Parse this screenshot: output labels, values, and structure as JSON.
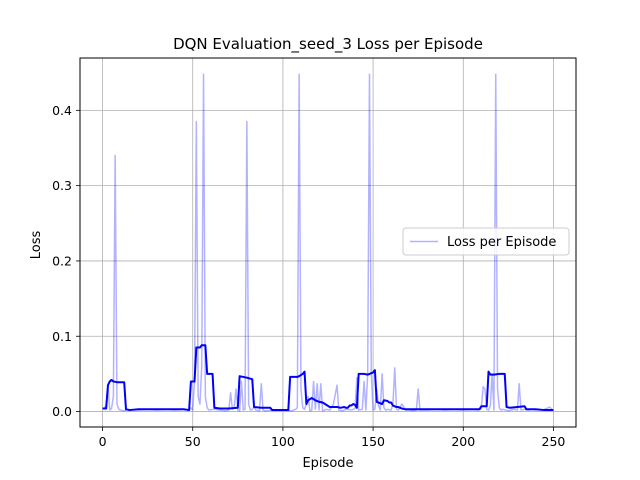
{
  "chart_data": {
    "type": "line",
    "title": "DQN Evaluation_seed_3 Loss per Episode",
    "xlabel": "Episode",
    "ylabel": "Loss",
    "xlim": [
      -12.5,
      262.5
    ],
    "ylim": [
      -0.0205,
      0.4695
    ],
    "xticks": [
      0,
      50,
      100,
      150,
      200,
      250
    ],
    "yticks": [
      0.0,
      0.1,
      0.2,
      0.3,
      0.4
    ],
    "ytick_labels": [
      "0.0",
      "0.1",
      "0.2",
      "0.3",
      "0.4"
    ],
    "grid": true,
    "legend": {
      "entries": [
        "Loss per Episode"
      ],
      "placement": "center-right"
    },
    "series": [
      {
        "name": "Loss per Episode",
        "color": "#0000ff",
        "opacity": 0.3,
        "points": [
          [
            0,
            0.005
          ],
          [
            1,
            0.004
          ],
          [
            2,
            0.01
          ],
          [
            3,
            0.035
          ],
          [
            4,
            0.002
          ],
          [
            5,
            0.004
          ],
          [
            6,
            0.02
          ],
          [
            7,
            0.34
          ],
          [
            8,
            0.01
          ],
          [
            9,
            0.003
          ],
          [
            10,
            0.002
          ],
          [
            12,
            0.001
          ],
          [
            14,
            0.003
          ],
          [
            16,
            0.002
          ],
          [
            18,
            0.003
          ],
          [
            20,
            0.002
          ],
          [
            25,
            0.003
          ],
          [
            30,
            0.002
          ],
          [
            35,
            0.003
          ],
          [
            40,
            0.002
          ],
          [
            45,
            0.003
          ],
          [
            48,
            0.002
          ],
          [
            49,
            0.005
          ],
          [
            50,
            0.002
          ],
          [
            51,
            0.04
          ],
          [
            52,
            0.385
          ],
          [
            53,
            0.02
          ],
          [
            54,
            0.01
          ],
          [
            55,
            0.06
          ],
          [
            56,
            0.448
          ],
          [
            57,
            0.02
          ],
          [
            58,
            0.005
          ],
          [
            59,
            0.002
          ],
          [
            62,
            0.003
          ],
          [
            65,
            0.002
          ],
          [
            68,
            0.001
          ],
          [
            70,
            0.002
          ],
          [
            71,
            0.025
          ],
          [
            72,
            0.003
          ],
          [
            73,
            0.005
          ],
          [
            74,
            0.03
          ],
          [
            75,
            0.002
          ],
          [
            76,
            0.001
          ],
          [
            77,
            0.04
          ],
          [
            78,
            0.002
          ],
          [
            79,
            0.003
          ],
          [
            80,
            0.385
          ],
          [
            81,
            0.01
          ],
          [
            82,
            0.002
          ],
          [
            83,
            0.003
          ],
          [
            84,
            0.006
          ],
          [
            85,
            0.002
          ],
          [
            87,
            0.001
          ],
          [
            88,
            0.037
          ],
          [
            89,
            0.002
          ],
          [
            90,
            0.001
          ],
          [
            95,
            0.002
          ],
          [
            100,
            0.002
          ],
          [
            105,
            0.001
          ],
          [
            107,
            0.003
          ],
          [
            108,
            0.005
          ],
          [
            109,
            0.448
          ],
          [
            110,
            0.03
          ],
          [
            111,
            0.005
          ],
          [
            112,
            0.003
          ],
          [
            113,
            0.01
          ],
          [
            114,
            0.02
          ],
          [
            115,
            0.001
          ],
          [
            116,
            0.002
          ],
          [
            117,
            0.04
          ],
          [
            118,
            0.003
          ],
          [
            119,
            0.037
          ],
          [
            120,
            0.002
          ],
          [
            121,
            0.037
          ],
          [
            122,
            0.001
          ],
          [
            124,
            0.003
          ],
          [
            126,
            0.002
          ],
          [
            128,
            0.01
          ],
          [
            130,
            0.035
          ],
          [
            131,
            0.002
          ],
          [
            133,
            0.001
          ],
          [
            135,
            0.003
          ],
          [
            138,
            0.002
          ],
          [
            140,
            0.004
          ],
          [
            141,
            0.045
          ],
          [
            142,
            0.002
          ],
          [
            144,
            0.003
          ],
          [
            145,
            0.04
          ],
          [
            146,
            0.002
          ],
          [
            147,
            0.05
          ],
          [
            148,
            0.448
          ],
          [
            149,
            0.05
          ],
          [
            150,
            0.002
          ],
          [
            151,
            0.003
          ],
          [
            152,
            0.03
          ],
          [
            153,
            0.008
          ],
          [
            154,
            0.002
          ],
          [
            155,
            0.05
          ],
          [
            156,
            0.005
          ],
          [
            157,
            0.002
          ],
          [
            158,
            0.003
          ],
          [
            160,
            0.002
          ],
          [
            161,
            0.01
          ],
          [
            162,
            0.058
          ],
          [
            163,
            0.003
          ],
          [
            164,
            0.002
          ],
          [
            166,
            0.01
          ],
          [
            168,
            0.002
          ],
          [
            170,
            0.002
          ],
          [
            172,
            0.001
          ],
          [
            174,
            0.002
          ],
          [
            175,
            0.03
          ],
          [
            176,
            0.002
          ],
          [
            180,
            0.002
          ],
          [
            185,
            0.003
          ],
          [
            190,
            0.002
          ],
          [
            195,
            0.003
          ],
          [
            200,
            0.002
          ],
          [
            205,
            0.003
          ],
          [
            208,
            0.002
          ],
          [
            210,
            0.004
          ],
          [
            211,
            0.033
          ],
          [
            212,
            0.03
          ],
          [
            213,
            0.003
          ],
          [
            214,
            0.002
          ],
          [
            215,
            0.008
          ],
          [
            216,
            0.05
          ],
          [
            217,
            0.002
          ],
          [
            218,
            0.448
          ],
          [
            219,
            0.03
          ],
          [
            220,
            0.005
          ],
          [
            221,
            0.002
          ],
          [
            222,
            0.003
          ],
          [
            225,
            0.001
          ],
          [
            228,
            0.003
          ],
          [
            230,
            0.002
          ],
          [
            231,
            0.037
          ],
          [
            232,
            0.002
          ],
          [
            234,
            0.003
          ],
          [
            236,
            0.002
          ],
          [
            238,
            0.003
          ],
          [
            240,
            0.002
          ],
          [
            242,
            0.003
          ],
          [
            244,
            0.002
          ],
          [
            246,
            0.004
          ],
          [
            248,
            0.006
          ],
          [
            249,
            0.003
          ]
        ]
      },
      {
        "color": "#0000ff",
        "opacity": 1.0,
        "points": [
          [
            0,
            0.004
          ],
          [
            1,
            0.004
          ],
          [
            2,
            0.004
          ],
          [
            3,
            0.035
          ],
          [
            4,
            0.04
          ],
          [
            5,
            0.042
          ],
          [
            6,
            0.04
          ],
          [
            8,
            0.039
          ],
          [
            10,
            0.039
          ],
          [
            12,
            0.039
          ],
          [
            13,
            0.003
          ],
          [
            15,
            0.002
          ],
          [
            20,
            0.003
          ],
          [
            25,
            0.003
          ],
          [
            30,
            0.003
          ],
          [
            35,
            0.003
          ],
          [
            40,
            0.003
          ],
          [
            45,
            0.003
          ],
          [
            48,
            0.002
          ],
          [
            49,
            0.04
          ],
          [
            51,
            0.04
          ],
          [
            52,
            0.085
          ],
          [
            54,
            0.085
          ],
          [
            55,
            0.088
          ],
          [
            57,
            0.088
          ],
          [
            58,
            0.05
          ],
          [
            61,
            0.05
          ],
          [
            62,
            0.005
          ],
          [
            65,
            0.004
          ],
          [
            70,
            0.004
          ],
          [
            75,
            0.005
          ],
          [
            76,
            0.047
          ],
          [
            78,
            0.046
          ],
          [
            80,
            0.045
          ],
          [
            83,
            0.043
          ],
          [
            84,
            0.006
          ],
          [
            88,
            0.005
          ],
          [
            90,
            0.005
          ],
          [
            93,
            0.005
          ],
          [
            94,
            0.002
          ],
          [
            97,
            0.002
          ],
          [
            100,
            0.002
          ],
          [
            103,
            0.002
          ],
          [
            104,
            0.046
          ],
          [
            108,
            0.046
          ],
          [
            109,
            0.047
          ],
          [
            111,
            0.05
          ],
          [
            112,
            0.053
          ],
          [
            113,
            0.01
          ],
          [
            114,
            0.015
          ],
          [
            116,
            0.018
          ],
          [
            118,
            0.015
          ],
          [
            120,
            0.013
          ],
          [
            122,
            0.012
          ],
          [
            124,
            0.009
          ],
          [
            126,
            0.006
          ],
          [
            128,
            0.006
          ],
          [
            130,
            0.006
          ],
          [
            132,
            0.005
          ],
          [
            134,
            0.006
          ],
          [
            135,
            0.005
          ],
          [
            136,
            0.005
          ],
          [
            137,
            0.008
          ],
          [
            138,
            0.008
          ],
          [
            139,
            0.01
          ],
          [
            140,
            0.009
          ],
          [
            141,
            0.005
          ],
          [
            142,
            0.05
          ],
          [
            145,
            0.05
          ],
          [
            147,
            0.049
          ],
          [
            148,
            0.05
          ],
          [
            150,
            0.052
          ],
          [
            151,
            0.055
          ],
          [
            152,
            0.013
          ],
          [
            155,
            0.01
          ],
          [
            156,
            0.015
          ],
          [
            158,
            0.014
          ],
          [
            159,
            0.012
          ],
          [
            160,
            0.012
          ],
          [
            161,
            0.008
          ],
          [
            163,
            0.006
          ],
          [
            164,
            0.006
          ],
          [
            166,
            0.004
          ],
          [
            168,
            0.003
          ],
          [
            170,
            0.003
          ],
          [
            175,
            0.003
          ],
          [
            180,
            0.003
          ],
          [
            185,
            0.003
          ],
          [
            190,
            0.003
          ],
          [
            195,
            0.003
          ],
          [
            200,
            0.003
          ],
          [
            205,
            0.003
          ],
          [
            209,
            0.003
          ],
          [
            210,
            0.007
          ],
          [
            213,
            0.007
          ],
          [
            214,
            0.053
          ],
          [
            215,
            0.049
          ],
          [
            217,
            0.049
          ],
          [
            220,
            0.05
          ],
          [
            223,
            0.05
          ],
          [
            224,
            0.006
          ],
          [
            226,
            0.005
          ],
          [
            230,
            0.006
          ],
          [
            234,
            0.007
          ],
          [
            235,
            0.003
          ],
          [
            240,
            0.003
          ],
          [
            245,
            0.002
          ],
          [
            250,
            0.002
          ]
        ]
      }
    ]
  }
}
